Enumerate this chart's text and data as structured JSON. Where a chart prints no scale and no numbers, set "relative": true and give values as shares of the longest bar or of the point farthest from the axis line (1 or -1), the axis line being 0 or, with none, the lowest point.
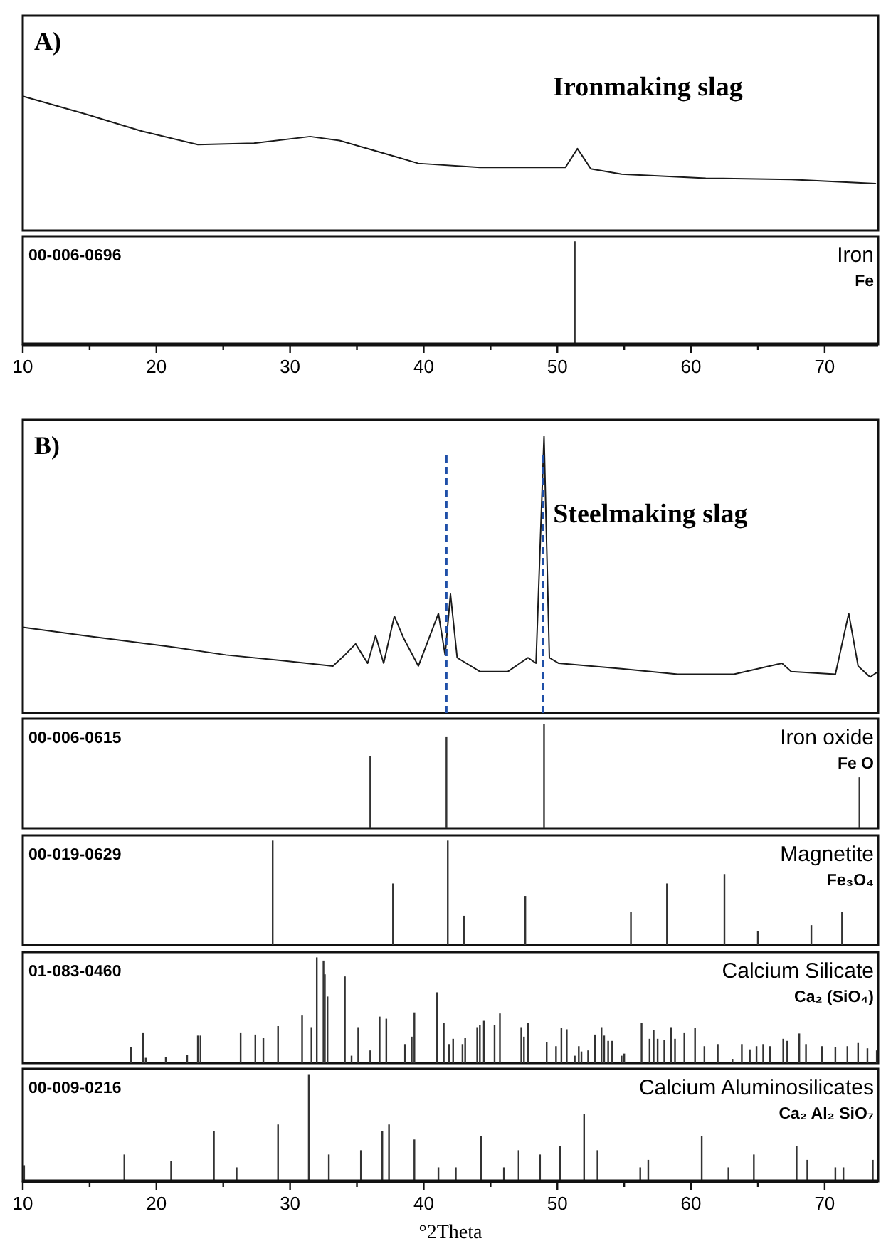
{
  "chart_data": [
    {
      "type": "line",
      "title": "A)",
      "annotations": [
        "Ironmaking slag"
      ],
      "relative": true,
      "tick_labels": false,
      "xlim": [
        10,
        74
      ],
      "x": [
        10.0,
        14.6,
        18.9,
        23.1,
        27.3,
        31.5,
        33.7,
        37.9,
        39.6,
        44.2,
        50.6,
        51.5,
        52.5,
        54.8,
        61.1,
        67.5,
        73.8
      ],
      "series": [
        {
          "color": "#1a1a1a",
          "values": [
            1.0,
            0.87,
            0.74,
            0.64,
            0.65,
            0.7,
            0.67,
            0.55,
            0.5,
            0.47,
            0.47,
            0.61,
            0.46,
            0.42,
            0.39,
            0.38,
            0.35
          ]
        }
      ]
    },
    {
      "type": "bar",
      "annotations": [
        "00-006-0696",
        "Iron",
        "Fe"
      ],
      "relative": true,
      "tick_labels": "x",
      "xlim": [
        10,
        74
      ],
      "xticks": [
        10,
        {
          "value": 15,
          "label": null
        },
        20,
        {
          "value": 25,
          "label": null
        },
        30,
        {
          "value": 35,
          "label": null
        },
        40,
        {
          "value": 45,
          "label": null
        },
        50,
        {
          "value": 55,
          "label": null
        },
        60,
        {
          "value": 65,
          "label": null
        },
        70
      ],
      "x": [
        51.3
      ],
      "series": [
        {
          "color": "#333333",
          "values": [
            1.0
          ]
        }
      ]
    },
    {
      "type": "line",
      "title": "B)",
      "annotations": [
        "Steelmaking slag"
      ],
      "relative": true,
      "tick_labels": false,
      "xlim": [
        10,
        74
      ],
      "ref_lines": [
        {
          "axis": "x",
          "value": 41.7,
          "color": "#1f4fa8",
          "line_style": "dashed"
        },
        {
          "axis": "x",
          "value": 48.9,
          "color": "#1f4fa8",
          "line_style": "dashed"
        }
      ],
      "x": [
        10.0,
        14.6,
        21.0,
        25.2,
        29.4,
        33.2,
        34.1,
        34.9,
        35.8,
        36.4,
        37.0,
        37.8,
        38.5,
        39.6,
        41.1,
        41.6,
        42.0,
        42.5,
        44.2,
        46.3,
        47.8,
        48.4,
        49.0,
        49.4,
        50.1,
        54.8,
        59.0,
        63.2,
        66.8,
        67.5,
        70.8,
        71.8,
        72.5,
        73.4,
        74.0
      ],
      "series": [
        {
          "color": "#1a1a1a",
          "values": [
            0.31,
            0.28,
            0.24,
            0.21,
            0.19,
            0.17,
            0.21,
            0.25,
            0.18,
            0.28,
            0.18,
            0.35,
            0.27,
            0.17,
            0.36,
            0.21,
            0.43,
            0.2,
            0.15,
            0.15,
            0.2,
            0.18,
            1.0,
            0.2,
            0.18,
            0.16,
            0.14,
            0.14,
            0.18,
            0.15,
            0.14,
            0.36,
            0.17,
            0.13,
            0.15
          ]
        }
      ]
    },
    {
      "type": "bar",
      "annotations": [
        "00-006-0615",
        "Iron oxide",
        "Fe O"
      ],
      "relative": true,
      "tick_labels": false,
      "xlim": [
        10,
        74
      ],
      "x": [
        36.0,
        41.7,
        49.0,
        72.6
      ],
      "series": [
        {
          "color": "#333333",
          "values": [
            0.69,
            0.88,
            1.0,
            0.49
          ]
        }
      ]
    },
    {
      "type": "bar",
      "annotations": [
        "00-019-0629",
        "Magnetite",
        "Fe₃O₄"
      ],
      "relative": true,
      "tick_labels": false,
      "xlim": [
        10,
        74
      ],
      "x": [
        28.7,
        37.7,
        41.8,
        43.0,
        47.6,
        55.5,
        58.2,
        62.5,
        65.0,
        69.0,
        71.3
      ],
      "series": [
        {
          "color": "#333333",
          "values": [
            1.0,
            0.59,
            1.0,
            0.28,
            0.47,
            0.32,
            0.59,
            0.68,
            0.13,
            0.19,
            0.32
          ]
        }
      ]
    },
    {
      "type": "bar",
      "annotations": [
        "01-083-0460",
        "Calcium Silicate",
        "Ca₂ (SiO₄)"
      ],
      "relative": true,
      "tick_labels": false,
      "xlim": [
        10,
        74
      ],
      "x": [
        18.1,
        19.0,
        19.2,
        20.7,
        22.3,
        23.1,
        23.3,
        26.3,
        27.4,
        28.0,
        29.1,
        30.9,
        31.6,
        32.0,
        32.5,
        32.6,
        32.8,
        34.1,
        34.6,
        35.1,
        36.0,
        36.7,
        37.2,
        38.6,
        39.1,
        39.3,
        41.0,
        41.5,
        41.9,
        42.2,
        42.9,
        43.1,
        44.0,
        44.2,
        44.5,
        45.3,
        45.7,
        47.3,
        47.5,
        47.8,
        49.2,
        49.9,
        50.3,
        50.7,
        51.3,
        51.6,
        51.8,
        52.3,
        52.8,
        53.3,
        53.5,
        53.8,
        54.1,
        54.8,
        55.0,
        56.3,
        56.9,
        57.2,
        57.5,
        58.0,
        58.5,
        58.8,
        59.5,
        60.3,
        61.0,
        62.0,
        63.1,
        63.8,
        64.4,
        64.9,
        65.4,
        65.9,
        66.9,
        67.2,
        68.1,
        68.6,
        69.8,
        70.8,
        71.7,
        72.5,
        73.2,
        73.9
      ],
      "series": [
        {
          "color": "#333333",
          "values": [
            0.15,
            0.29,
            0.05,
            0.06,
            0.08,
            0.26,
            0.26,
            0.29,
            0.27,
            0.24,
            0.35,
            0.45,
            0.34,
            1.0,
            0.97,
            0.84,
            0.63,
            0.82,
            0.07,
            0.34,
            0.12,
            0.44,
            0.42,
            0.18,
            0.25,
            0.48,
            0.67,
            0.38,
            0.18,
            0.23,
            0.18,
            0.24,
            0.34,
            0.36,
            0.4,
            0.36,
            0.47,
            0.34,
            0.25,
            0.38,
            0.2,
            0.16,
            0.33,
            0.32,
            0.07,
            0.16,
            0.11,
            0.12,
            0.27,
            0.34,
            0.26,
            0.21,
            0.21,
            0.07,
            0.09,
            0.38,
            0.23,
            0.31,
            0.23,
            0.22,
            0.34,
            0.23,
            0.29,
            0.33,
            0.16,
            0.18,
            0.04,
            0.18,
            0.13,
            0.16,
            0.18,
            0.16,
            0.23,
            0.21,
            0.28,
            0.18,
            0.16,
            0.15,
            0.16,
            0.19,
            0.14,
            0.12
          ]
        }
      ]
    },
    {
      "type": "bar",
      "annotations": [
        "00-009-0216",
        "Calcium Aluminosilicates",
        "Ca₂ Al₂ SiO₇"
      ],
      "relative": true,
      "tick_labels": "x",
      "xlabel": "°2Theta",
      "xlim": [
        10,
        74
      ],
      "xticks": [
        10,
        {
          "value": 15,
          "label": null
        },
        20,
        {
          "value": 25,
          "label": null
        },
        30,
        {
          "value": 35,
          "label": null
        },
        40,
        {
          "value": 45,
          "label": null
        },
        50,
        {
          "value": 55,
          "label": null
        },
        60,
        {
          "value": 65,
          "label": null
        },
        70
      ],
      "x": [
        10.1,
        17.6,
        21.1,
        24.3,
        26.0,
        29.1,
        31.4,
        32.9,
        35.3,
        36.9,
        37.4,
        39.3,
        41.1,
        42.4,
        44.3,
        46.0,
        47.1,
        48.7,
        50.2,
        52.0,
        53.0,
        56.2,
        56.8,
        60.8,
        62.8,
        64.7,
        67.9,
        68.7,
        70.8,
        71.4,
        73.6
      ],
      "series": [
        {
          "color": "#333333",
          "values": [
            0.15,
            0.25,
            0.19,
            0.47,
            0.13,
            0.53,
            1.0,
            0.25,
            0.29,
            0.47,
            0.53,
            0.39,
            0.13,
            0.13,
            0.42,
            0.13,
            0.29,
            0.25,
            0.33,
            0.63,
            0.29,
            0.13,
            0.2,
            0.42,
            0.13,
            0.25,
            0.33,
            0.2,
            0.13,
            0.13,
            0.2
          ]
        }
      ]
    }
  ]
}
